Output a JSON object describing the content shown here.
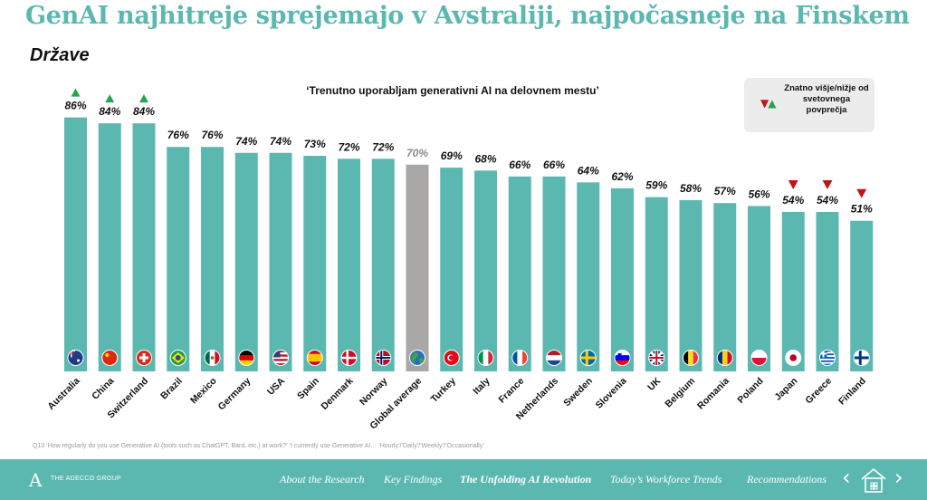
{
  "header": {
    "title": "GenAI najhitreje sprejemajo v Avstraliji, najpočasneje na Finskem",
    "subtitle": "Države"
  },
  "legend": {
    "text": "Znatno višje/nižje od svetovnega povprečja",
    "up_color": "#27a34b",
    "down_color": "#c0141b"
  },
  "chart_data": {
    "type": "bar",
    "title": "‘Trenutno uporabljam generativni AI na delovnem mestu’",
    "xlabel": "",
    "ylabel": "",
    "ylim": [
      0,
      100
    ],
    "grid": false,
    "value_format": "percent",
    "categories": [
      "Australia",
      "China",
      "Switzerland",
      "Brazil",
      "Mexico",
      "Germany",
      "USA",
      "Spain",
      "Denmark",
      "Norway",
      "Global average",
      "Turkey",
      "Italy",
      "France",
      "Netherlands",
      "Sweden",
      "Slovenia",
      "UK",
      "Belgium",
      "Romania",
      "Poland",
      "Japan",
      "Greece",
      "Finland"
    ],
    "values": [
      86,
      84,
      84,
      76,
      76,
      74,
      74,
      73,
      72,
      72,
      70,
      69,
      68,
      66,
      66,
      64,
      62,
      59,
      58,
      57,
      56,
      54,
      54,
      51
    ],
    "labels": [
      "86%",
      "84%",
      "84%",
      "76%",
      "76%",
      "74%",
      "74%",
      "73%",
      "72%",
      "72%",
      "70%",
      "69%",
      "68%",
      "66%",
      "66%",
      "64%",
      "62%",
      "59%",
      "58%",
      "57%",
      "56%",
      "54%",
      "54%",
      "51%"
    ],
    "significance": [
      "up",
      "up",
      "up",
      "",
      "",
      "",
      "",
      "",
      "",
      "",
      "",
      "",
      "",
      "",
      "",
      "",
      "",
      "",
      "",
      "",
      "",
      "down",
      "down",
      "down"
    ],
    "bar_color": "#5bb8b0",
    "average_color": "#aaa7a7",
    "highlight_category": "Global average",
    "flags": [
      "australia-flag",
      "china-flag",
      "switzerland-flag",
      "brazil-flag",
      "mexico-flag",
      "germany-flag",
      "usa-flag",
      "spain-flag",
      "denmark-flag",
      "norway-flag",
      "globe",
      "turkey-flag",
      "italy-flag",
      "france-flag",
      "netherlands-flag",
      "sweden-flag",
      "slovenia-flag",
      "uk-flag",
      "belgium-flag",
      "romania-flag",
      "poland-flag",
      "japan-flag",
      "greece-flag",
      "finland-flag"
    ]
  },
  "footnote": "Q10 ‘How regularly do you use Generative AI (tools such as ChatGPT, Bard, etc.) at work?’ ‘I currently use Generative AI… ‘Hourly’/‘Daily’/‘Weekly’/‘Occasionally’",
  "footer": {
    "logo": "A",
    "brand": "THE ADECCO GROUP",
    "nav": [
      "About the Research",
      "Key Findings",
      "The Unfolding AI Revolution",
      "Today’s Workforce Trends",
      "Recommendations"
    ],
    "active_index": 2,
    "bg_color": "#5bb8b0"
  }
}
